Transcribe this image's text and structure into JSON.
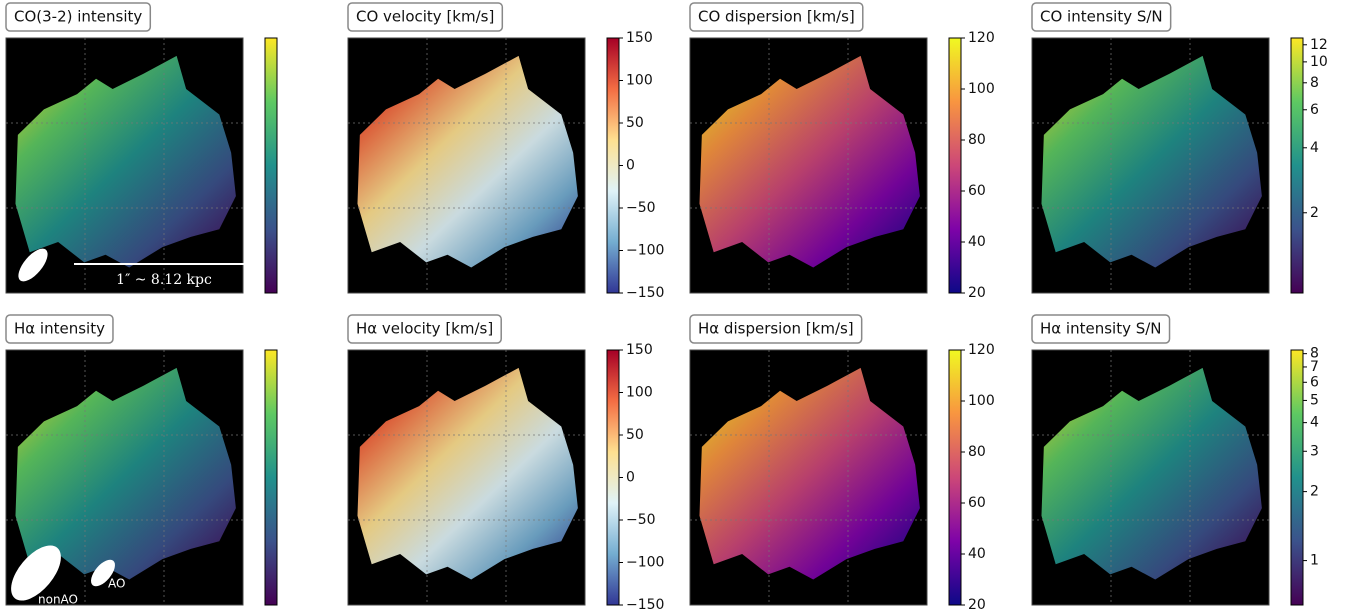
{
  "panels": [
    {
      "title": "CO(3-2) intensity",
      "colormap": [
        "#440154",
        "#3b528b",
        "#21918c",
        "#5ec962",
        "#fde725"
      ],
      "log": false,
      "lim": [
        0,
        1
      ],
      "ticks": []
    },
    {
      "title": "CO velocity [km/s]",
      "colormap": [
        "#313695",
        "#74add1",
        "#e0f3f8",
        "#fee090",
        "#f46d43",
        "#a50026"
      ],
      "log": false,
      "lim": [
        -150,
        150
      ],
      "ticks": [
        150,
        100,
        50,
        0,
        {
          "value": -50,
          "label": "−50"
        },
        {
          "value": -100,
          "label": "−100"
        },
        {
          "value": -150,
          "label": "−150"
        }
      ]
    },
    {
      "title": "CO dispersion [km/s]",
      "colormap": [
        "#0d0887",
        "#7e03a8",
        "#cc4778",
        "#f89540",
        "#f0f921"
      ],
      "log": false,
      "lim": [
        20,
        120
      ],
      "ticks": [
        120,
        100,
        80,
        60,
        40,
        20
      ]
    },
    {
      "title": "CO intensity S/N",
      "colormap": [
        "#440154",
        "#3b528b",
        "#21918c",
        "#5ec962",
        "#fde725"
      ],
      "log": true,
      "lim": [
        0.85,
        12.9
      ],
      "ticks": [
        12,
        10,
        8,
        6,
        4,
        2
      ]
    },
    {
      "title": "Hα intensity",
      "colormap": [
        "#440154",
        "#3b528b",
        "#21918c",
        "#5ec962",
        "#fde725"
      ],
      "log": false,
      "lim": [
        0,
        1
      ],
      "ticks": []
    },
    {
      "title": "Hα velocity [km/s]",
      "colormap": [
        "#313695",
        "#74add1",
        "#e0f3f8",
        "#fee090",
        "#f46d43",
        "#a50026"
      ],
      "log": false,
      "lim": [
        -150,
        150
      ],
      "ticks": [
        150,
        100,
        50,
        0,
        {
          "value": -50,
          "label": "−50"
        },
        {
          "value": -100,
          "label": "−100"
        },
        {
          "value": -150,
          "label": "−150"
        }
      ]
    },
    {
      "title": "Hα dispersion [km/s]",
      "colormap": [
        "#0d0887",
        "#7e03a8",
        "#cc4778",
        "#f89540",
        "#f0f921"
      ],
      "log": false,
      "lim": [
        20,
        120
      ],
      "ticks": [
        120,
        100,
        80,
        60,
        40,
        20
      ]
    },
    {
      "title": "Hα intensity S/N",
      "colormap": [
        "#440154",
        "#3b528b",
        "#21918c",
        "#5ec962",
        "#fde725"
      ],
      "log": true,
      "lim": [
        0.64,
        8.3
      ],
      "ticks": [
        8,
        7,
        6,
        5,
        4,
        3,
        2,
        1
      ]
    }
  ],
  "scale_bar": "1″ ~ 8.12 kpc",
  "beam_labels": [
    "nonAO",
    "AO"
  ]
}
